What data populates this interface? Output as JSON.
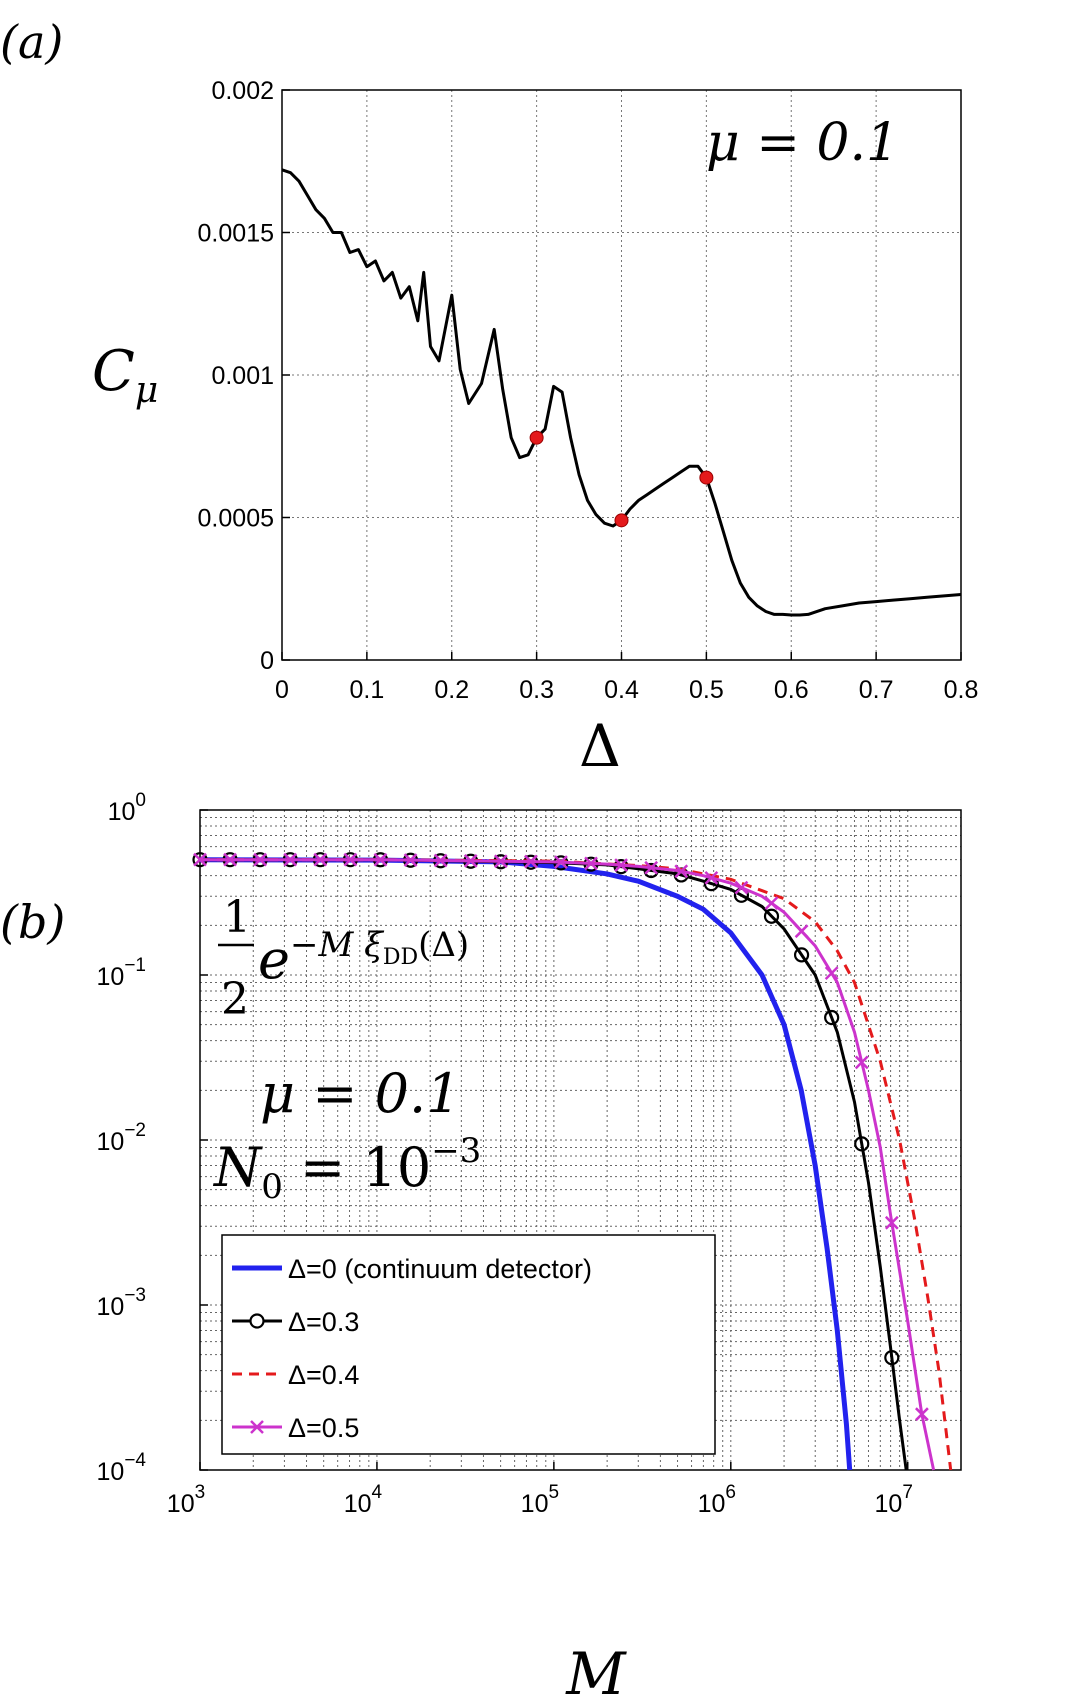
{
  "panels": [
    {
      "label": "(a)"
    },
    {
      "label": "(b)"
    }
  ],
  "chart_data": [
    {
      "type": "line",
      "panel": "(a)",
      "title": "",
      "xlabel": "Δ",
      "ylabel": "C",
      "ylabel_subscript": "μ",
      "annotation": "μ = 0.1",
      "xlim": [
        0,
        0.8
      ],
      "ylim": [
        0,
        0.002
      ],
      "grid": true,
      "x_ticks": [
        0,
        0.1,
        0.2,
        0.3,
        0.4,
        0.5,
        0.6,
        0.7,
        0.8
      ],
      "x_tick_labels": [
        "0",
        "0.1",
        "0.2",
        "0.3",
        "0.4",
        "0.5",
        "0.6",
        "0.7",
        "0.8"
      ],
      "y_ticks": [
        0,
        0.0005,
        0.001,
        0.0015,
        0.002
      ],
      "y_tick_labels": [
        "0",
        "0.0005",
        "0.001",
        "0.0015",
        "0.002"
      ],
      "series": [
        {
          "color": "#000000",
          "x": [
            0,
            0.01,
            0.02,
            0.03,
            0.04,
            0.05,
            0.06,
            0.07,
            0.08,
            0.09,
            0.1,
            0.11,
            0.12,
            0.13,
            0.14,
            0.15,
            0.16,
            0.167,
            0.175,
            0.185,
            0.2,
            0.21,
            0.22,
            0.235,
            0.25,
            0.26,
            0.27,
            0.28,
            0.29,
            0.3,
            0.31,
            0.32,
            0.33,
            0.34,
            0.35,
            0.36,
            0.37,
            0.38,
            0.39,
            0.4,
            0.41,
            0.42,
            0.43,
            0.44,
            0.45,
            0.46,
            0.47,
            0.48,
            0.49,
            0.5,
            0.51,
            0.52,
            0.53,
            0.54,
            0.55,
            0.56,
            0.57,
            0.58,
            0.59,
            0.6,
            0.61,
            0.62,
            0.64,
            0.66,
            0.68,
            0.7,
            0.72,
            0.74,
            0.76,
            0.78,
            0.8
          ],
          "y": [
            0.00172,
            0.00171,
            0.00168,
            0.00163,
            0.00158,
            0.00155,
            0.0015,
            0.0015,
            0.00143,
            0.00144,
            0.00138,
            0.0014,
            0.00133,
            0.00136,
            0.00127,
            0.00131,
            0.00119,
            0.00136,
            0.0011,
            0.00105,
            0.00128,
            0.00102,
            0.0009,
            0.00097,
            0.00116,
            0.00095,
            0.00078,
            0.00071,
            0.00072,
            0.00078,
            0.00081,
            0.00096,
            0.00094,
            0.00078,
            0.00065,
            0.00056,
            0.00051,
            0.00048,
            0.00047,
            0.00049,
            0.00053,
            0.00056,
            0.00058,
            0.0006,
            0.00062,
            0.00064,
            0.00066,
            0.00068,
            0.00068,
            0.00064,
            0.00055,
            0.00045,
            0.00035,
            0.00027,
            0.00022,
            0.00019,
            0.00017,
            0.00016,
            0.00016,
            0.000158,
            0.000158,
            0.00016,
            0.00018,
            0.00019,
            0.0002,
            0.000205,
            0.00021,
            0.000215,
            0.00022,
            0.000225,
            0.00023
          ]
        },
        {
          "type": "scatter",
          "color": "#e41a1c",
          "x": [
            0.3,
            0.4,
            0.5
          ],
          "y": [
            0.00078,
            0.00049,
            0.00064
          ]
        }
      ]
    },
    {
      "type": "line",
      "panel": "(b)",
      "title": "",
      "xlabel": "M",
      "ylabel": "",
      "xscale": "log",
      "yscale": "log",
      "xlim": [
        1000,
        20000000
      ],
      "ylim": [
        0.0001,
        1
      ],
      "grid": true,
      "legend_position": "bottom-left",
      "x_ticks": [
        1000,
        10000,
        100000,
        1000000,
        10000000
      ],
      "x_tick_bases": [
        "10",
        "10",
        "10",
        "10",
        "10"
      ],
      "x_tick_exps": [
        "3",
        "4",
        "5",
        "6",
        "7"
      ],
      "y_ticks": [
        0.0001,
        0.001,
        0.01,
        0.1,
        1
      ],
      "y_tick_bases": [
        "10",
        "10",
        "10",
        "10",
        "10"
      ],
      "y_tick_exps": [
        "−4",
        "−3",
        "−2",
        "−1",
        "0"
      ],
      "annotations": {
        "formula_numerator": "1",
        "formula_denominator": "2",
        "formula_base": "e",
        "formula_exponent": "−M ξ",
        "formula_subscript": "DD",
        "formula_arg": "(Δ)",
        "mu": "μ = 0.1",
        "n0_base": "N",
        "n0_sub": "0",
        "n0_eq": " = 10",
        "n0_exp": "−3"
      },
      "series": [
        {
          "name": "Δ=0 (continuum detector)",
          "color": "#2222ee",
          "style": "solid",
          "marker": "none",
          "x": [
            1000,
            10000,
            50000,
            100000,
            200000,
            300000,
            500000,
            700000,
            1000000,
            1500000,
            2000000,
            2500000,
            3000000,
            3500000,
            4000000,
            4500000,
            4700000
          ],
          "y": [
            0.5,
            0.497,
            0.485,
            0.455,
            0.41,
            0.37,
            0.3,
            0.25,
            0.18,
            0.1,
            0.05,
            0.02,
            0.007,
            0.0022,
            0.0007,
            0.00019,
            0.0001
          ]
        },
        {
          "name": "Δ=0.3",
          "color": "#000000",
          "style": "solid",
          "marker": "circle",
          "x": [
            1000,
            10000,
            100000,
            200000,
            300000,
            500000,
            700000,
            1000000,
            1500000,
            2000000,
            3000000,
            4000000,
            5000000,
            6000000,
            7000000,
            8000000,
            9000000,
            9800000
          ],
          "y": [
            0.5,
            0.5,
            0.48,
            0.465,
            0.44,
            0.41,
            0.37,
            0.33,
            0.26,
            0.19,
            0.1,
            0.045,
            0.017,
            0.0055,
            0.0017,
            0.00055,
            0.0002,
            0.0001
          ]
        },
        {
          "name": "Δ=0.4",
          "color": "#e41a1c",
          "style": "dashed",
          "marker": "none",
          "x": [
            1000,
            10000,
            100000,
            300000,
            500000,
            1000000,
            2000000,
            3000000,
            4000000,
            5000000,
            7000000,
            9000000,
            11000000,
            13000000,
            15000000,
            17500000
          ],
          "y": [
            0.5,
            0.5,
            0.49,
            0.46,
            0.44,
            0.38,
            0.29,
            0.21,
            0.14,
            0.09,
            0.03,
            0.01,
            0.0032,
            0.0011,
            0.0004,
            0.0001
          ]
        },
        {
          "name": "Δ=0.5",
          "color": "#cc33cc",
          "style": "solid",
          "marker": "x",
          "x": [
            1000,
            10000,
            100000,
            200000,
            300000,
            500000,
            700000,
            1000000,
            1500000,
            2000000,
            3000000,
            4000000,
            5000000,
            6000000,
            7000000,
            8000000,
            10000000,
            12000000,
            14000000
          ],
          "y": [
            0.5,
            0.5,
            0.485,
            0.47,
            0.455,
            0.43,
            0.4,
            0.36,
            0.3,
            0.24,
            0.15,
            0.09,
            0.045,
            0.02,
            0.009,
            0.0035,
            0.0008,
            0.00022,
            0.0001
          ]
        }
      ]
    }
  ]
}
